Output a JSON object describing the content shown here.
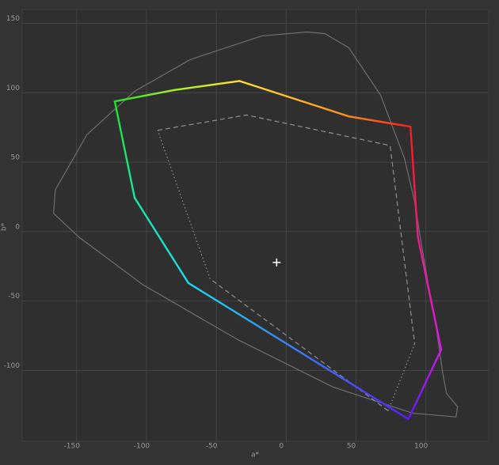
{
  "chart_data": {
    "type": "gamut",
    "x_label": "a*",
    "y_label": "b*",
    "xlim": [
      -189,
      145
    ],
    "ylim": [
      -151,
      160
    ],
    "xticks": [
      -150,
      -100,
      -50,
      0,
      50,
      100
    ],
    "yticks": [
      -100,
      -50,
      0,
      50,
      100,
      150
    ],
    "grid": true,
    "series": [
      {
        "style": "solid",
        "color": "#6a6a6a",
        "closed": true,
        "x": [
          14.8,
          -17.6,
          -68.8,
          -108.5,
          -142.6,
          -165.3,
          -166.5,
          -148.3,
          -102.8,
          -34.7,
          33.5,
          90.3,
          121.6,
          122.7,
          114.8,
          111.9,
          106.3,
          101.7,
          96.0,
          92.0,
          84.7,
          67.6,
          44.9,
          27.8
        ],
        "values": [
          143.8,
          140.9,
          123.9,
          101.1,
          69.9,
          30.1,
          13.1,
          -4.0,
          -38.1,
          -77.8,
          -111.9,
          -130.7,
          -133.5,
          -126.1,
          -116.5,
          -100.6,
          -60.8,
          -38.1,
          -4.0,
          21.6,
          52.8,
          98.3,
          132.4,
          142.6
        ]
      },
      {
        "style": "dashed",
        "color": "#8a8a8a",
        "closed": false,
        "x": [
          -92,
          -28.4,
          74.4,
          92
        ],
        "values": [
          73,
          84,
          62,
          -80.7
        ]
      },
      {
        "style": "dotted",
        "color": "#8a8a8a",
        "closed": false,
        "x": [
          92,
          73
        ],
        "values": [
          -80.7,
          -129
        ]
      },
      {
        "style": "dashed",
        "color": "#8a8a8a",
        "closed": false,
        "x": [
          73,
          -54.5
        ],
        "values": [
          -129,
          -34
        ]
      },
      {
        "style": "dotted",
        "color": "#8a8a8a",
        "closed": false,
        "x": [
          -54.5,
          -92
        ],
        "values": [
          -34,
          73
        ]
      },
      {
        "style": "gradient",
        "closed": true,
        "x": [
          89,
          44.9,
          -33.5,
          -80,
          -122.7,
          -108.5,
          -70,
          87.5,
          111,
          94.3
        ],
        "values": [
          75.6,
          83,
          108.5,
          102,
          93.8,
          24.4,
          -37,
          -135,
          -85,
          -4
        ],
        "colors": [
          "#ff1a1a",
          "#ff8c1a",
          "#ffe033",
          "#a6f02a",
          "#22e02a",
          "#1ae8a0",
          "#1adcf0",
          "#5a1aff",
          "#d41ae8",
          "#f01a80"
        ]
      },
      {
        "style": "marker",
        "color": "#ffffff",
        "closed": false,
        "x": [
          -6.8
        ],
        "values": [
          -22.2
        ]
      }
    ]
  }
}
